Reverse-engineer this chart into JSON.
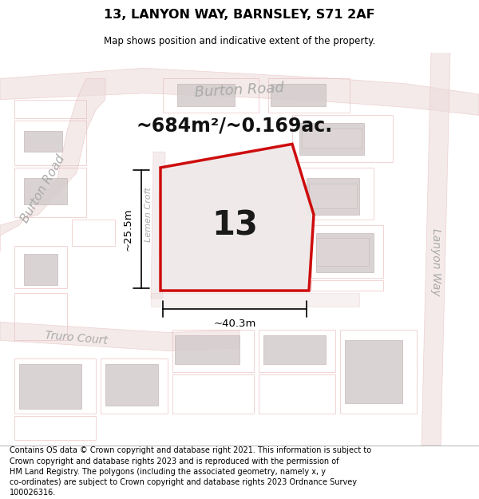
{
  "title": "13, LANYON WAY, BARNSLEY, S71 2AF",
  "subtitle": "Map shows position and indicative extent of the property.",
  "footer": "Contains OS data © Crown copyright and database right 2021. This information is subject to Crown copyright and database rights 2023 and is reproduced with the permission of HM Land Registry. The polygons (including the associated geometry, namely x, y co-ordinates) are subject to Crown copyright and database rights 2023 Ordnance Survey 100026316.",
  "area_label": "~684m²/~0.169ac.",
  "property_number": "13",
  "width_label": "~40.3m",
  "height_label": "~25.5m",
  "road_label_burton_top": "Burton Road",
  "road_label_burton_left": "Burton Road",
  "road_label_lanyon": "Lanyon Way",
  "road_label_truro": "Truro Court",
  "road_label_lemen": "Lemen Croft",
  "map_bg": "#f2eeee",
  "road_color": "#e8b8b8",
  "road_fill": "#eddcdc",
  "building_fill": "#d4cccc",
  "building_edge": "#c0b0b0",
  "prop_fill": "#f0e8e8",
  "prop_edge": "#cc0000",
  "figsize": [
    6.0,
    6.25
  ],
  "dpi": 100
}
